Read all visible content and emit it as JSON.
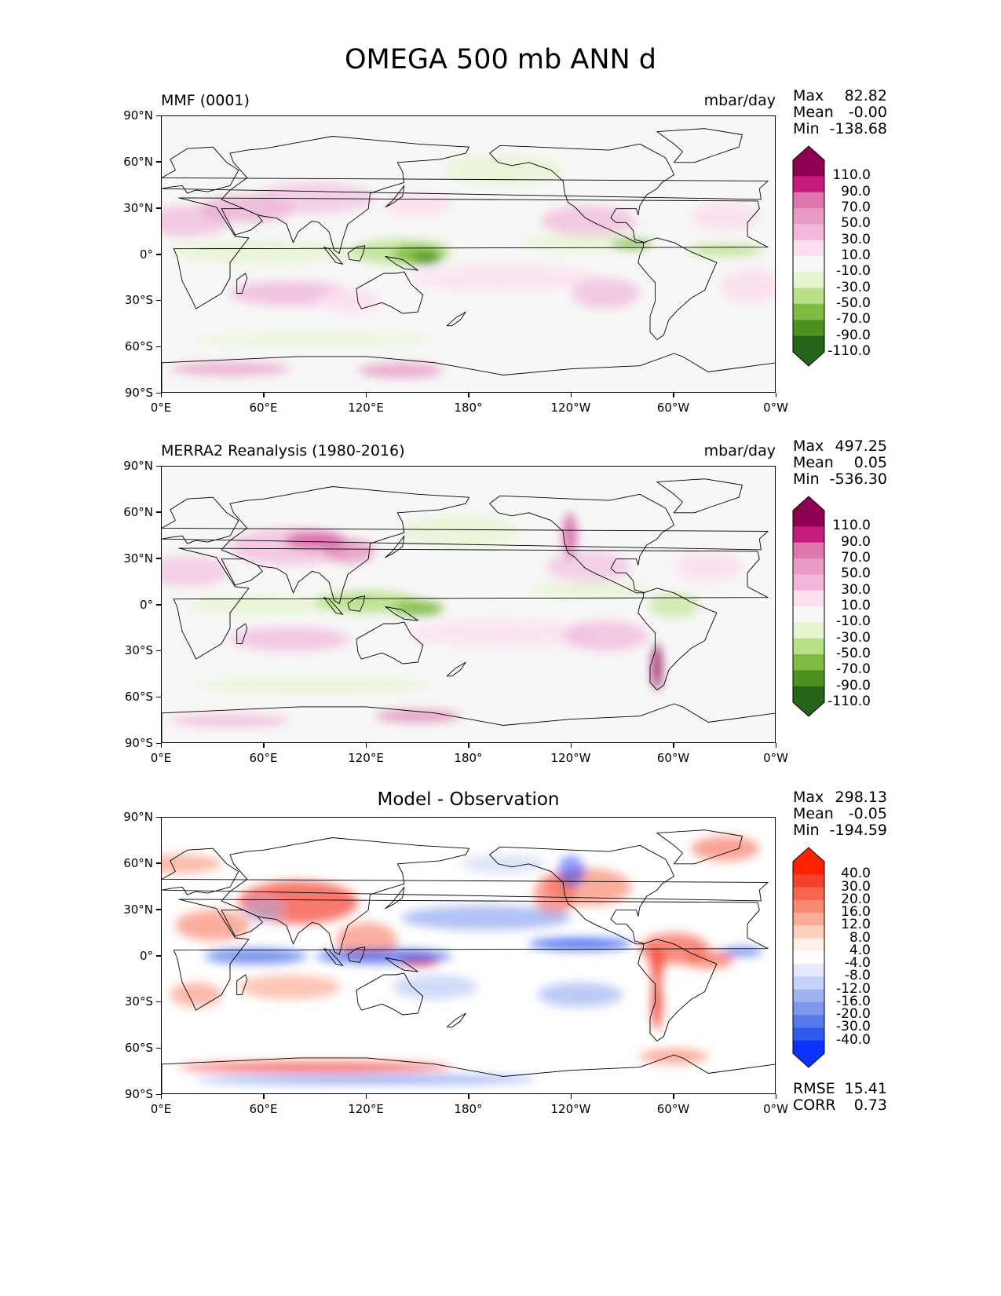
{
  "title": "OMEGA 500 mb ANN d",
  "panels": [
    {
      "title": "MMF (0001)",
      "units": "mbar/day",
      "stats": [
        {
          "label": "Max",
          "value": "82.82"
        },
        {
          "label": "Mean",
          "value": "-0.00"
        },
        {
          "label": "Min",
          "value": "-138.68"
        }
      ],
      "colorbar": {
        "levels": [
          "110.0",
          "90.0",
          "70.0",
          "50.0",
          "30.0",
          "10.0",
          "-10.0",
          "-30.0",
          "-50.0",
          "-70.0",
          "-90.0",
          "-110.0"
        ],
        "colors": [
          "#8e0152",
          "#c51b7d",
          "#de77ae",
          "#e89bc5",
          "#f1b6da",
          "#fde0ef",
          "#f7f7f7",
          "#e6f5d0",
          "#b8e186",
          "#7fbc41",
          "#4d9221",
          "#276419"
        ]
      }
    },
    {
      "title": "MERRA2 Reanalysis (1980-2016)",
      "units": "mbar/day",
      "stats": [
        {
          "label": "Max",
          "value": "497.25"
        },
        {
          "label": "Mean",
          "value": "0.05"
        },
        {
          "label": "Min",
          "value": "-536.30"
        }
      ],
      "colorbar": {
        "levels": [
          "110.0",
          "90.0",
          "70.0",
          "50.0",
          "30.0",
          "10.0",
          "-10.0",
          "-30.0",
          "-50.0",
          "-70.0",
          "-90.0",
          "-110.0"
        ],
        "colors": [
          "#8e0152",
          "#c51b7d",
          "#de77ae",
          "#e89bc5",
          "#f1b6da",
          "#fde0ef",
          "#f7f7f7",
          "#e6f5d0",
          "#b8e186",
          "#7fbc41",
          "#4d9221",
          "#276419"
        ]
      }
    },
    {
      "title": "Model - Observation",
      "units": "",
      "stats": [
        {
          "label": "Max",
          "value": "298.13"
        },
        {
          "label": "Mean",
          "value": "-0.05"
        },
        {
          "label": "Min",
          "value": "-194.59"
        }
      ],
      "colorbar": {
        "levels": [
          "40.0",
          "30.0",
          "20.0",
          "16.0",
          "12.0",
          "8.0",
          "4.0",
          "-4.0",
          "-8.0",
          "-12.0",
          "-16.0",
          "-20.0",
          "-30.0",
          "-40.0"
        ],
        "colors": [
          "#ff2200",
          "#f4402e",
          "#f7654f",
          "#fa8a72",
          "#fcad97",
          "#fdd0c0",
          "#fff0ea",
          "#ffffff",
          "#e4e9fb",
          "#c5d2f7",
          "#9fb3f1",
          "#7f98ee",
          "#567ae9",
          "#2f5bf0",
          "#0a33ff"
        ]
      },
      "metrics": [
        {
          "label": "RMSE",
          "value": "15.41"
        },
        {
          "label": "CORR",
          "value": "0.73"
        }
      ]
    }
  ],
  "axes": {
    "x_ticks": [
      "0°E",
      "60°E",
      "120°E",
      "180°",
      "120°W",
      "60°W",
      "0°W"
    ],
    "y_ticks": [
      "90°N",
      "60°N",
      "30°N",
      "0°",
      "30°S",
      "60°S",
      "90°S"
    ]
  }
}
